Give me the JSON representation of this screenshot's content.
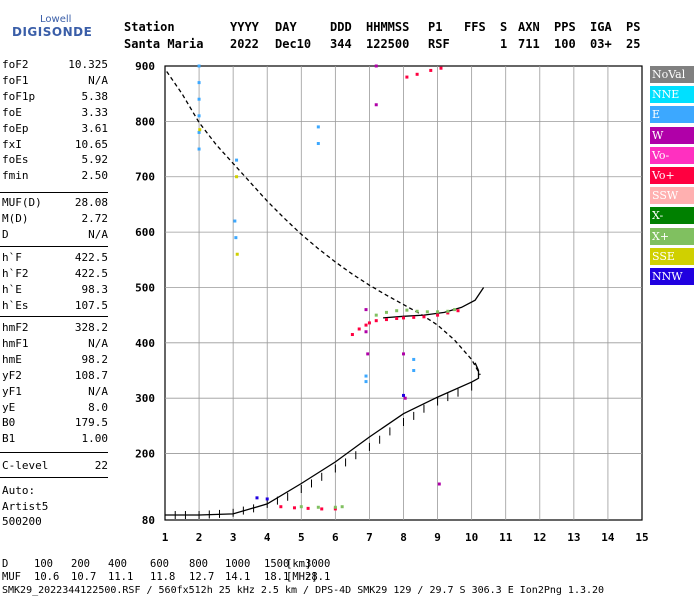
{
  "logo": {
    "brand": "Lowell",
    "name": "DIGISONDE"
  },
  "header": {
    "labels": [
      "Station",
      "YYYY",
      "DAY",
      "DDD",
      "HHMMSS",
      "P1",
      "FFS",
      "S",
      "AXN",
      "PPS",
      "IGA",
      "PS"
    ],
    "station": "Santa Maria",
    "year": "2022",
    "day": "Dec10",
    "doy": "344",
    "time": "122500",
    "p1": "RSF",
    "s": "1",
    "axn": "711",
    "pps": "100",
    "iga": "03+",
    "ps": "25"
  },
  "params": {
    "group1": [
      {
        "name": "foF2",
        "value": "10.325"
      },
      {
        "name": "foF1",
        "value": "N/A"
      },
      {
        "name": "foF1p",
        "value": "5.38"
      },
      {
        "name": "foE",
        "value": "3.33"
      },
      {
        "name": "foEp",
        "value": "3.61"
      },
      {
        "name": "fxI",
        "value": "10.65"
      },
      {
        "name": "foEs",
        "value": "5.92"
      },
      {
        "name": "fmin",
        "value": "2.50"
      }
    ],
    "group2": [
      {
        "name": "MUF(D)",
        "value": "28.08"
      },
      {
        "name": "M(D)",
        "value": "2.72"
      },
      {
        "name": "D",
        "value": "N/A"
      }
    ],
    "group3": [
      {
        "name": "h`F",
        "value": "422.5"
      },
      {
        "name": "h`F2",
        "value": "422.5"
      },
      {
        "name": "h`E",
        "value": "98.3"
      },
      {
        "name": "h`Es",
        "value": "107.5"
      }
    ],
    "group4": [
      {
        "name": "hmF2",
        "value": "328.2"
      },
      {
        "name": "hmF1",
        "value": "N/A"
      },
      {
        "name": "hmE",
        "value": "98.2"
      },
      {
        "name": "yF2",
        "value": "108.7"
      },
      {
        "name": "yF1",
        "value": "N/A"
      },
      {
        "name": "yE",
        "value": "8.0"
      },
      {
        "name": "B0",
        "value": "179.5"
      },
      {
        "name": "B1",
        "value": "1.00"
      }
    ],
    "clevel": {
      "name": "C-level",
      "value": "22"
    },
    "auto": [
      "Auto:",
      "Artist5",
      "500200"
    ]
  },
  "legend": [
    {
      "label": "NoVal",
      "color": "#808080"
    },
    {
      "label": "NNE",
      "color": "#00e0ff"
    },
    {
      "label": "E",
      "color": "#3ca8ff"
    },
    {
      "label": "W",
      "color": "#b000a8"
    },
    {
      "label": "Vo-",
      "color": "#ff30c0"
    },
    {
      "label": "Vo+",
      "color": "#ff0040"
    },
    {
      "label": "SSW",
      "color": "#ffb0b0"
    },
    {
      "label": "X-",
      "color": "#008000"
    },
    {
      "label": "X+",
      "color": "#80c060"
    },
    {
      "label": "SSE",
      "color": "#d0d000"
    },
    {
      "label": "NNW",
      "color": "#2000e0"
    }
  ],
  "chart_data": {
    "type": "scatter",
    "xlim": [
      1,
      15
    ],
    "ylim": [
      80,
      900
    ],
    "x_ticks": [
      1,
      2,
      3,
      4,
      5,
      6,
      7,
      8,
      9,
      10,
      11,
      12,
      13,
      14,
      15
    ],
    "y_ticks": [
      80,
      200,
      300,
      400,
      500,
      600,
      700,
      800,
      900
    ],
    "grid": true,
    "series": [
      {
        "style": "dashed",
        "color": "#000000",
        "points": [
          [
            1.05,
            890
          ],
          [
            1.5,
            850
          ],
          [
            2,
            798
          ],
          [
            2.5,
            758
          ],
          [
            3,
            724
          ],
          [
            3.5,
            690
          ],
          [
            4,
            656
          ],
          [
            4.5,
            625
          ],
          [
            5,
            596
          ],
          [
            5.5,
            570
          ],
          [
            6,
            546
          ],
          [
            6.5,
            524
          ],
          [
            7,
            504
          ],
          [
            7.5,
            486
          ],
          [
            8,
            469
          ],
          [
            8.5,
            452
          ],
          [
            9,
            432
          ],
          [
            9.5,
            405
          ],
          [
            10,
            370
          ],
          [
            10.25,
            342
          ]
        ]
      },
      {
        "style": "solid",
        "color": "#000000",
        "points": [
          [
            1,
            89
          ],
          [
            2,
            89
          ],
          [
            3,
            91
          ],
          [
            4,
            109
          ],
          [
            5,
            146
          ],
          [
            6,
            185
          ],
          [
            7,
            230
          ],
          [
            8,
            272
          ],
          [
            9,
            302
          ],
          [
            10,
            329
          ],
          [
            10.2,
            336
          ],
          [
            10.2,
            350
          ],
          [
            10.1,
            364
          ]
        ]
      },
      {
        "style": "solid",
        "color": "#000000",
        "points": [
          [
            7.4,
            445
          ],
          [
            8,
            448
          ],
          [
            8.6,
            450
          ],
          [
            9.2,
            455
          ],
          [
            9.7,
            464
          ],
          [
            10.1,
            477
          ],
          [
            10.35,
            500
          ]
        ]
      },
      {
        "style": "ticks",
        "color": "#000000",
        "points": [
          [
            1.3,
            89
          ],
          [
            1.6,
            89
          ],
          [
            2,
            89
          ],
          [
            2.3,
            90
          ],
          [
            2.6,
            91
          ],
          [
            3,
            93
          ],
          [
            3.3,
            97
          ],
          [
            3.6,
            101
          ],
          [
            4,
            109
          ],
          [
            4.3,
            115
          ],
          [
            4.6,
            122
          ],
          [
            5,
            136
          ],
          [
            5.3,
            146
          ],
          [
            5.6,
            158
          ],
          [
            6,
            173
          ],
          [
            6.3,
            184
          ],
          [
            6.6,
            197
          ],
          [
            7,
            212
          ],
          [
            7.3,
            225
          ],
          [
            7.6,
            240
          ],
          [
            8,
            257
          ],
          [
            8.3,
            268
          ],
          [
            8.6,
            281
          ],
          [
            9,
            294
          ],
          [
            9.3,
            302
          ],
          [
            9.6,
            310
          ],
          [
            10,
            321
          ]
        ]
      },
      {
        "name": "Vo+",
        "style": "points",
        "color": "#ff0040",
        "points": [
          [
            6.5,
            415
          ],
          [
            6.7,
            425
          ],
          [
            6.9,
            432
          ],
          [
            7,
            436
          ],
          [
            7.2,
            440
          ],
          [
            7.5,
            442
          ],
          [
            7.8,
            444
          ],
          [
            8,
            445
          ],
          [
            8.3,
            446
          ],
          [
            8.6,
            447
          ],
          [
            9,
            450
          ],
          [
            9.3,
            454
          ],
          [
            9.6,
            458
          ],
          [
            4.8,
            102
          ],
          [
            5.2,
            101
          ],
          [
            5.6,
            100
          ],
          [
            6,
            100
          ],
          [
            4.4,
            104
          ],
          [
            8.1,
            880
          ],
          [
            8.4,
            885
          ],
          [
            8.8,
            892
          ],
          [
            9.1,
            896
          ]
        ]
      },
      {
        "name": "X+",
        "style": "points",
        "color": "#80c060",
        "points": [
          [
            7.2,
            450
          ],
          [
            7.5,
            455
          ],
          [
            7.8,
            458
          ],
          [
            8.1,
            459
          ],
          [
            8.4,
            457
          ],
          [
            8.7,
            456
          ],
          [
            9,
            456
          ],
          [
            9.3,
            457
          ],
          [
            9.5,
            460
          ],
          [
            5,
            104
          ],
          [
            5.5,
            103
          ],
          [
            6,
            103
          ],
          [
            6.2,
            104
          ]
        ]
      },
      {
        "name": "W",
        "style": "points",
        "color": "#b000a8",
        "points": [
          [
            6.9,
            460
          ],
          [
            6.9,
            420
          ],
          [
            6.95,
            380
          ],
          [
            7.2,
            900
          ],
          [
            7.2,
            830
          ],
          [
            8,
            380
          ],
          [
            8.05,
            300
          ],
          [
            9.05,
            145
          ]
        ]
      },
      {
        "name": "E",
        "style": "points",
        "color": "#3ca8ff",
        "points": [
          [
            2,
            900
          ],
          [
            2,
            870
          ],
          [
            2,
            840
          ],
          [
            2,
            810
          ],
          [
            2,
            780
          ],
          [
            2,
            750
          ],
          [
            3.1,
            730
          ],
          [
            3.05,
            620
          ],
          [
            3.08,
            590
          ],
          [
            5.5,
            790
          ],
          [
            5.5,
            760
          ],
          [
            8.3,
            370
          ],
          [
            8.3,
            350
          ],
          [
            6.9,
            340
          ],
          [
            6.9,
            330
          ]
        ]
      },
      {
        "name": "NNW",
        "style": "points",
        "color": "#2000e0",
        "points": [
          [
            3.7,
            120
          ],
          [
            4,
            118
          ],
          [
            8,
            305
          ]
        ]
      },
      {
        "name": "SSE",
        "style": "points",
        "color": "#d0d000",
        "points": [
          [
            2.02,
            785
          ],
          [
            3.1,
            700
          ],
          [
            3.12,
            560
          ]
        ]
      }
    ]
  },
  "footer": {
    "d_label": "D",
    "d_values": [
      "100",
      "200",
      "400",
      "600",
      "800",
      "1000",
      "1500",
      "3000"
    ],
    "d_unit": "[km]",
    "muf_label": "MUF",
    "muf_values": [
      "10.6",
      "10.7",
      "11.1",
      "11.8",
      "12.7",
      "14.1",
      "18.1",
      "28.1"
    ],
    "muf_unit": "[MHz]",
    "file": "SMK29_2022344122500.RSF / 560fx512h 25 kHz 2.5 km / DPS-4D SMK29 129 / 29.7 S 306.3 E Ion2Png 1.3.20"
  }
}
